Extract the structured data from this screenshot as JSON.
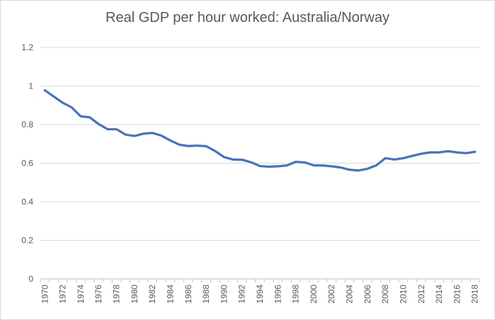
{
  "chart_data": {
    "type": "line",
    "title": "Real GDP per hour worked: Australia/Norway",
    "xlabel": "",
    "ylabel": "",
    "ylim": [
      0,
      1.2
    ],
    "yticks": [
      "0",
      "0.2",
      "0.4",
      "0.6",
      "0.8",
      "1",
      "1.2"
    ],
    "grid": true,
    "legend": "none",
    "line_color": "#4472c4",
    "x": [
      1970,
      1971,
      1972,
      1973,
      1974,
      1975,
      1976,
      1977,
      1978,
      1979,
      1980,
      1981,
      1982,
      1983,
      1984,
      1985,
      1986,
      1987,
      1988,
      1989,
      1990,
      1991,
      1992,
      1993,
      1994,
      1995,
      1996,
      1997,
      1998,
      1999,
      2000,
      2001,
      2002,
      2003,
      2004,
      2005,
      2006,
      2007,
      2008,
      2009,
      2010,
      2011,
      2012,
      2013,
      2014,
      2015,
      2016,
      2017,
      2018
    ],
    "xticks": [
      "1970",
      "1972",
      "1974",
      "1976",
      "1978",
      "1980",
      "1982",
      "1984",
      "1986",
      "1988",
      "1990",
      "1992",
      "1994",
      "1996",
      "1998",
      "2000",
      "2002",
      "2004",
      "2006",
      "2008",
      "2010",
      "2012",
      "2014",
      "2016",
      "2018"
    ],
    "series": [
      {
        "values": [
          0.978,
          0.945,
          0.913,
          0.889,
          0.843,
          0.838,
          0.803,
          0.776,
          0.776,
          0.748,
          0.741,
          0.753,
          0.757,
          0.743,
          0.718,
          0.696,
          0.689,
          0.691,
          0.688,
          0.663,
          0.632,
          0.619,
          0.618,
          0.605,
          0.585,
          0.582,
          0.584,
          0.588,
          0.607,
          0.604,
          0.589,
          0.588,
          0.584,
          0.578,
          0.566,
          0.562,
          0.571,
          0.589,
          0.626,
          0.619,
          0.626,
          0.638,
          0.649,
          0.656,
          0.656,
          0.662,
          0.656,
          0.652,
          0.659
        ]
      }
    ]
  }
}
